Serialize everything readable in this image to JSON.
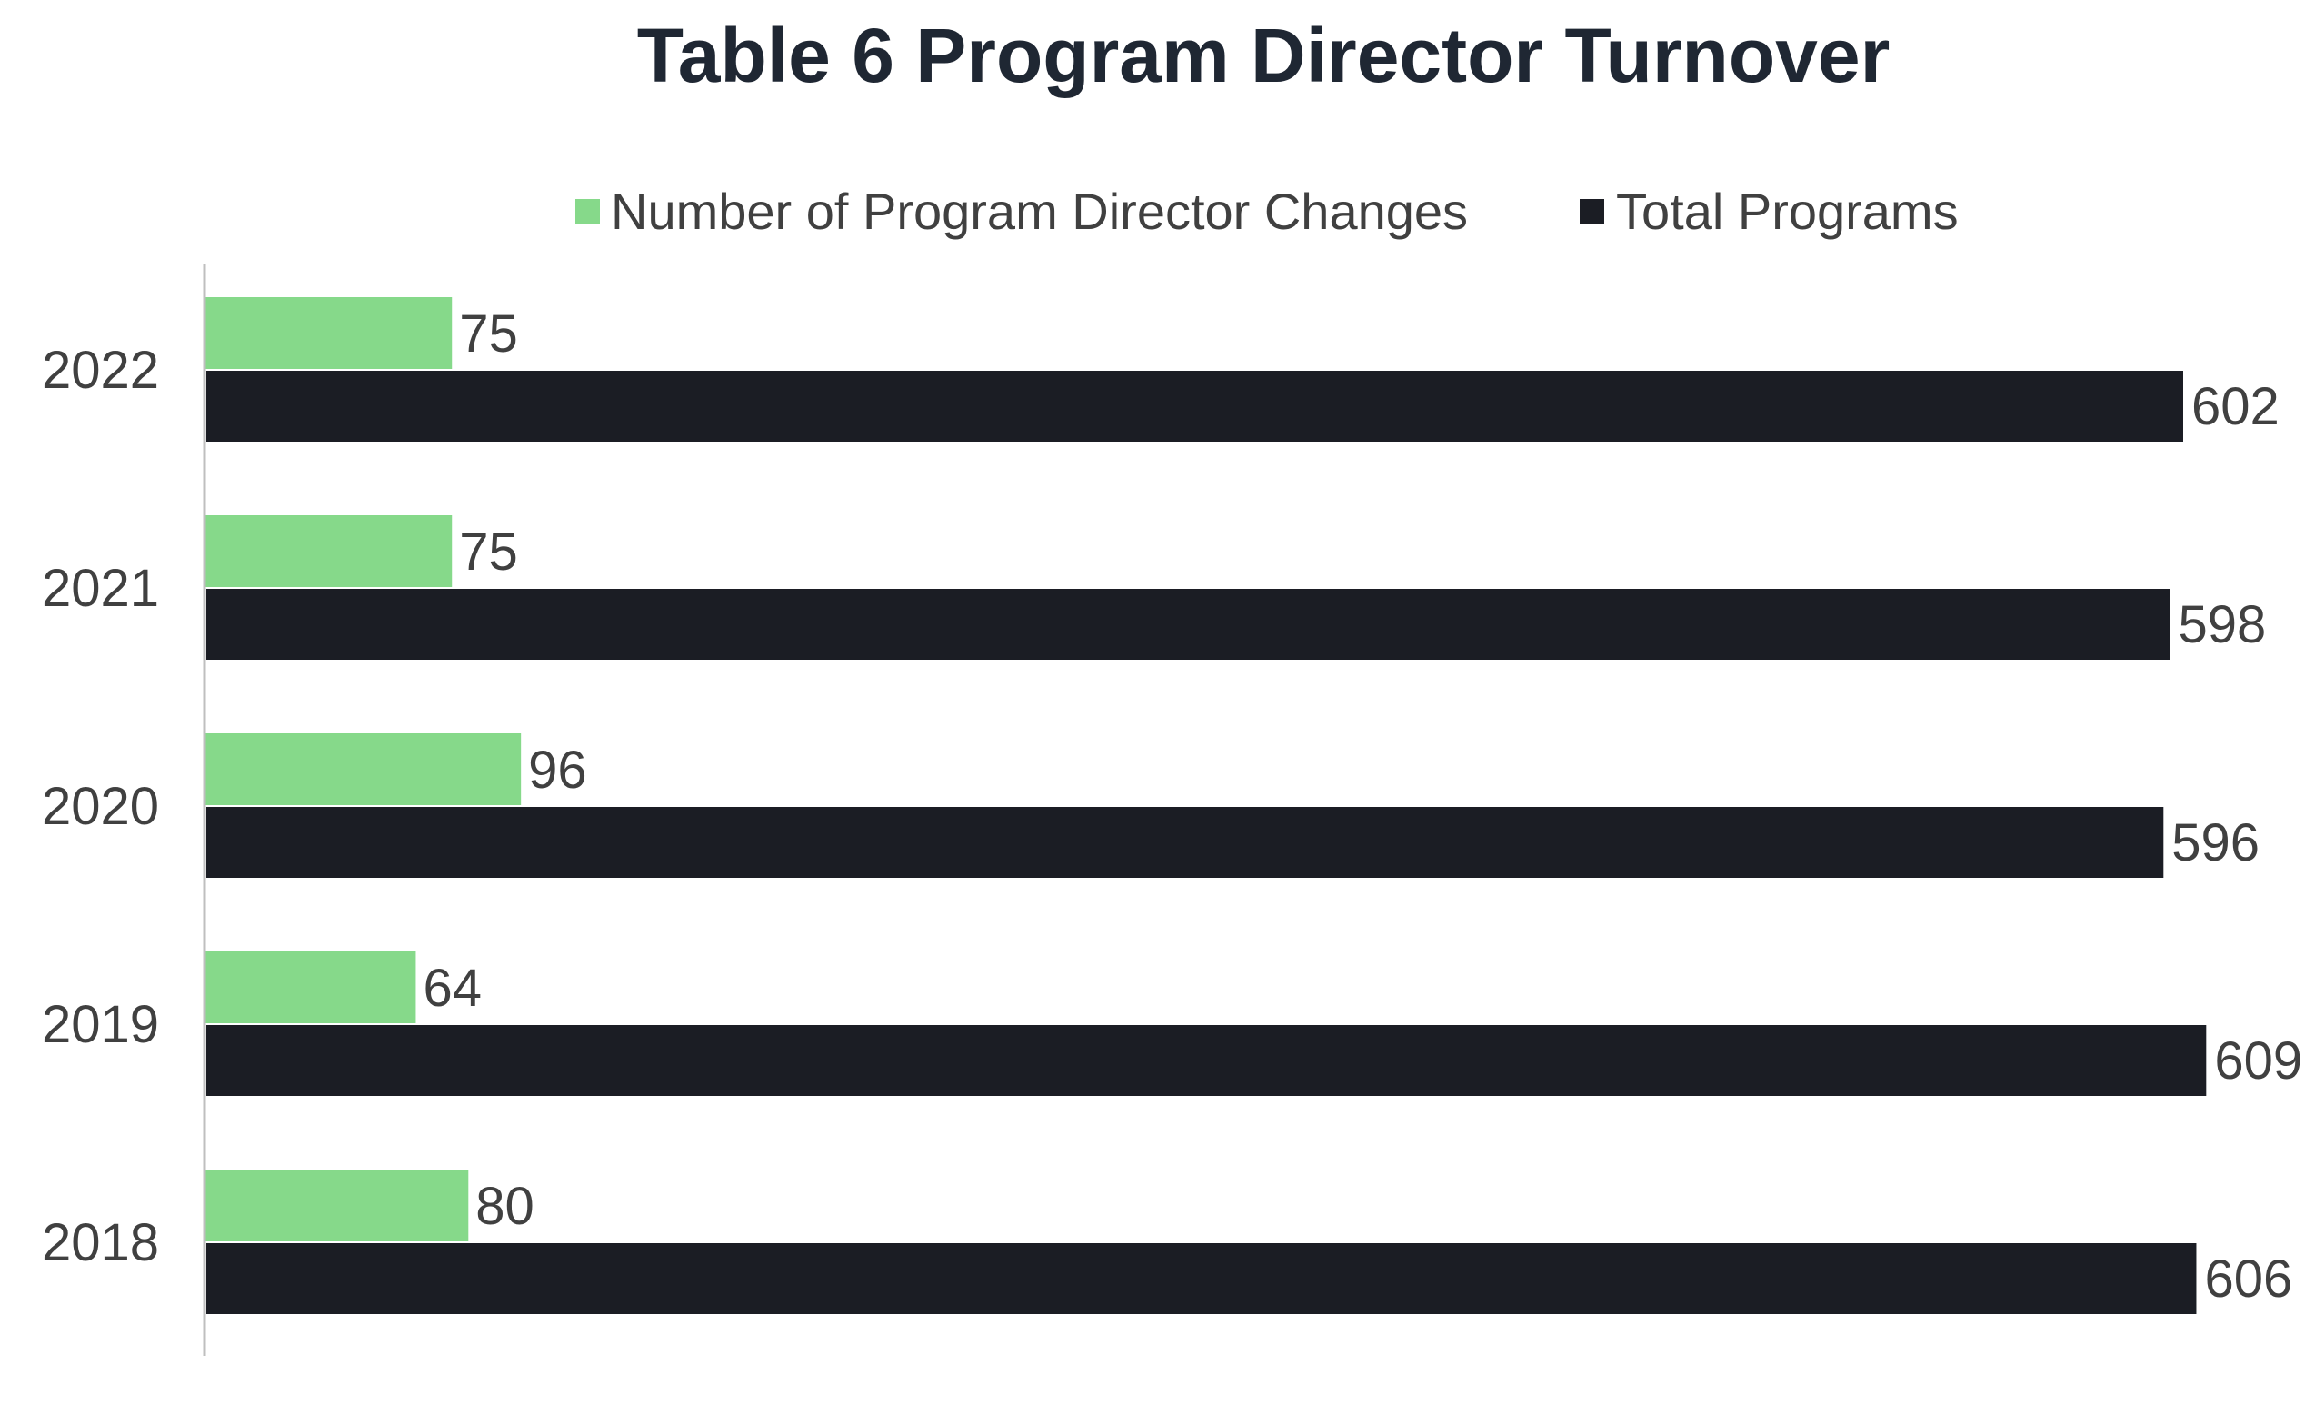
{
  "chart_data": {
    "type": "bar",
    "orientation": "horizontal",
    "title": "Table 6 Program Director Turnover",
    "categories": [
      "2022",
      "2021",
      "2020",
      "2019",
      "2018"
    ],
    "series": [
      {
        "name": "Number of Program Director Changes",
        "values": [
          75,
          75,
          96,
          64,
          80
        ],
        "color": "#86d98a"
      },
      {
        "name": "Total Programs",
        "values": [
          602,
          598,
          596,
          609,
          606
        ],
        "color": "#1b1d24"
      }
    ],
    "xlabel": "",
    "ylabel": "",
    "xlim": [
      0,
      620
    ],
    "grid": false,
    "legend_position": "top",
    "data_labels": true
  },
  "colors": {
    "title": "#1f2733",
    "text": "#404040",
    "axis": "#bfbfbf"
  }
}
